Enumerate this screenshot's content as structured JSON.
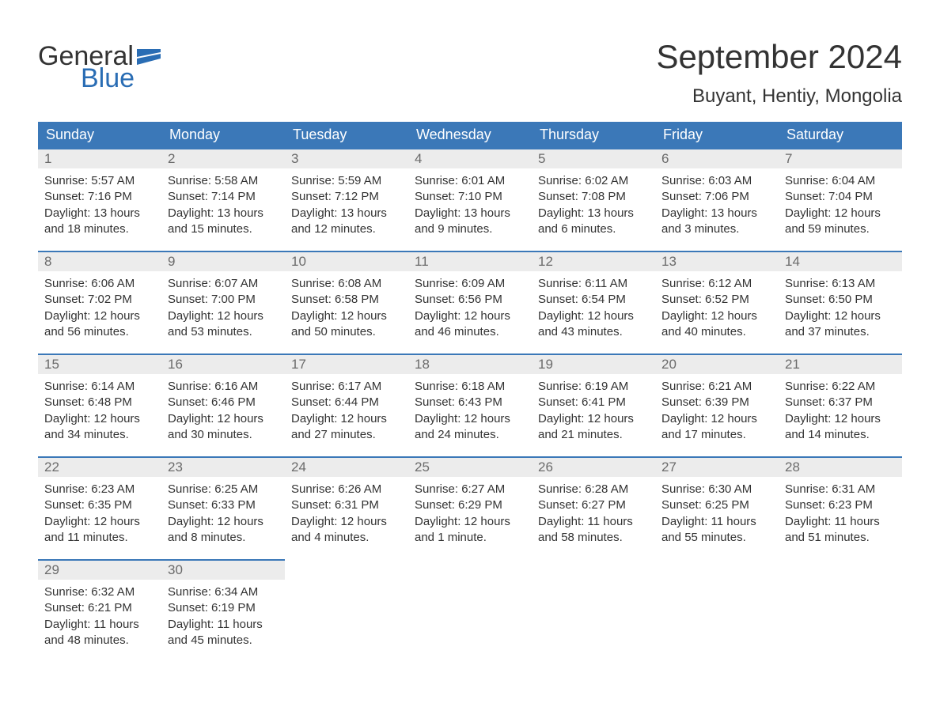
{
  "logo": {
    "general": "General",
    "blue": "Blue",
    "flag_color": "#2a6db4"
  },
  "title": "September 2024",
  "location": "Buyant, Hentiy, Mongolia",
  "colors": {
    "header_bg": "#3b78b8",
    "header_text": "#ffffff",
    "daynum_bg": "#ececec",
    "daynum_text": "#6b6b6b",
    "row_border": "#3b78b8",
    "body_text": "#333333",
    "logo_blue": "#2a6db4",
    "background": "#ffffff"
  },
  "fonts": {
    "title_size_pt": 32,
    "location_size_pt": 18,
    "header_size_pt": 14,
    "cell_size_pt": 11
  },
  "weekdays": [
    "Sunday",
    "Monday",
    "Tuesday",
    "Wednesday",
    "Thursday",
    "Friday",
    "Saturday"
  ],
  "days": [
    {
      "n": 1,
      "sunrise": "5:57 AM",
      "sunset": "7:16 PM",
      "daylight": "13 hours and 18 minutes."
    },
    {
      "n": 2,
      "sunrise": "5:58 AM",
      "sunset": "7:14 PM",
      "daylight": "13 hours and 15 minutes."
    },
    {
      "n": 3,
      "sunrise": "5:59 AM",
      "sunset": "7:12 PM",
      "daylight": "13 hours and 12 minutes."
    },
    {
      "n": 4,
      "sunrise": "6:01 AM",
      "sunset": "7:10 PM",
      "daylight": "13 hours and 9 minutes."
    },
    {
      "n": 5,
      "sunrise": "6:02 AM",
      "sunset": "7:08 PM",
      "daylight": "13 hours and 6 minutes."
    },
    {
      "n": 6,
      "sunrise": "6:03 AM",
      "sunset": "7:06 PM",
      "daylight": "13 hours and 3 minutes."
    },
    {
      "n": 7,
      "sunrise": "6:04 AM",
      "sunset": "7:04 PM",
      "daylight": "12 hours and 59 minutes."
    },
    {
      "n": 8,
      "sunrise": "6:06 AM",
      "sunset": "7:02 PM",
      "daylight": "12 hours and 56 minutes."
    },
    {
      "n": 9,
      "sunrise": "6:07 AM",
      "sunset": "7:00 PM",
      "daylight": "12 hours and 53 minutes."
    },
    {
      "n": 10,
      "sunrise": "6:08 AM",
      "sunset": "6:58 PM",
      "daylight": "12 hours and 50 minutes."
    },
    {
      "n": 11,
      "sunrise": "6:09 AM",
      "sunset": "6:56 PM",
      "daylight": "12 hours and 46 minutes."
    },
    {
      "n": 12,
      "sunrise": "6:11 AM",
      "sunset": "6:54 PM",
      "daylight": "12 hours and 43 minutes."
    },
    {
      "n": 13,
      "sunrise": "6:12 AM",
      "sunset": "6:52 PM",
      "daylight": "12 hours and 40 minutes."
    },
    {
      "n": 14,
      "sunrise": "6:13 AM",
      "sunset": "6:50 PM",
      "daylight": "12 hours and 37 minutes."
    },
    {
      "n": 15,
      "sunrise": "6:14 AM",
      "sunset": "6:48 PM",
      "daylight": "12 hours and 34 minutes."
    },
    {
      "n": 16,
      "sunrise": "6:16 AM",
      "sunset": "6:46 PM",
      "daylight": "12 hours and 30 minutes."
    },
    {
      "n": 17,
      "sunrise": "6:17 AM",
      "sunset": "6:44 PM",
      "daylight": "12 hours and 27 minutes."
    },
    {
      "n": 18,
      "sunrise": "6:18 AM",
      "sunset": "6:43 PM",
      "daylight": "12 hours and 24 minutes."
    },
    {
      "n": 19,
      "sunrise": "6:19 AM",
      "sunset": "6:41 PM",
      "daylight": "12 hours and 21 minutes."
    },
    {
      "n": 20,
      "sunrise": "6:21 AM",
      "sunset": "6:39 PM",
      "daylight": "12 hours and 17 minutes."
    },
    {
      "n": 21,
      "sunrise": "6:22 AM",
      "sunset": "6:37 PM",
      "daylight": "12 hours and 14 minutes."
    },
    {
      "n": 22,
      "sunrise": "6:23 AM",
      "sunset": "6:35 PM",
      "daylight": "12 hours and 11 minutes."
    },
    {
      "n": 23,
      "sunrise": "6:25 AM",
      "sunset": "6:33 PM",
      "daylight": "12 hours and 8 minutes."
    },
    {
      "n": 24,
      "sunrise": "6:26 AM",
      "sunset": "6:31 PM",
      "daylight": "12 hours and 4 minutes."
    },
    {
      "n": 25,
      "sunrise": "6:27 AM",
      "sunset": "6:29 PM",
      "daylight": "12 hours and 1 minute."
    },
    {
      "n": 26,
      "sunrise": "6:28 AM",
      "sunset": "6:27 PM",
      "daylight": "11 hours and 58 minutes."
    },
    {
      "n": 27,
      "sunrise": "6:30 AM",
      "sunset": "6:25 PM",
      "daylight": "11 hours and 55 minutes."
    },
    {
      "n": 28,
      "sunrise": "6:31 AM",
      "sunset": "6:23 PM",
      "daylight": "11 hours and 51 minutes."
    },
    {
      "n": 29,
      "sunrise": "6:32 AM",
      "sunset": "6:21 PM",
      "daylight": "11 hours and 48 minutes."
    },
    {
      "n": 30,
      "sunrise": "6:34 AM",
      "sunset": "6:19 PM",
      "daylight": "11 hours and 45 minutes."
    }
  ],
  "labels": {
    "sunrise": "Sunrise:",
    "sunset": "Sunset:",
    "daylight": "Daylight:"
  },
  "layout": {
    "columns": 7,
    "rows": 5,
    "start_weekday_index": 0
  }
}
